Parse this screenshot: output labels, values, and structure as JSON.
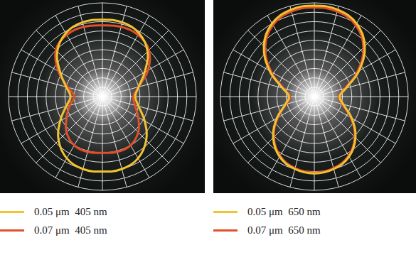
{
  "chart_data": [
    {
      "type": "radar",
      "x": [
        0,
        15,
        30,
        45,
        60,
        75,
        90,
        105,
        120,
        135,
        150,
        165,
        180,
        195,
        210,
        225,
        240,
        255,
        270,
        285,
        300,
        315,
        330,
        345
      ],
      "series": [
        {
          "name": "0.05 μm  405 nm",
          "color": "#f2c230",
          "values": [
            0.82,
            0.82,
            0.78,
            0.68,
            0.52,
            0.4,
            0.35,
            0.4,
            0.52,
            0.66,
            0.76,
            0.8,
            0.8,
            0.8,
            0.76,
            0.66,
            0.52,
            0.4,
            0.34,
            0.4,
            0.52,
            0.68,
            0.78,
            0.82
          ]
        },
        {
          "name": "0.07 μm  405 nm",
          "color": "#e0502a",
          "values": [
            0.76,
            0.77,
            0.76,
            0.7,
            0.56,
            0.4,
            0.33,
            0.36,
            0.44,
            0.54,
            0.6,
            0.61,
            0.6,
            0.61,
            0.6,
            0.54,
            0.44,
            0.36,
            0.3,
            0.38,
            0.54,
            0.7,
            0.76,
            0.77
          ]
        }
      ],
      "ylim": [
        0,
        1
      ],
      "yticks": [
        0,
        0.1,
        0.2,
        0.3,
        0.4,
        0.5,
        0.6,
        0.7,
        0.8,
        0.9,
        1
      ],
      "grid": true,
      "tick_labels": false,
      "legend": "bottom"
    },
    {
      "type": "radar",
      "x": [
        0,
        15,
        30,
        45,
        60,
        75,
        90,
        105,
        120,
        135,
        150,
        165,
        180,
        195,
        210,
        225,
        240,
        255,
        270,
        285,
        300,
        315,
        330,
        345
      ],
      "series": [
        {
          "name": "0.05 μm  650 nm",
          "color": "#f2c230",
          "values": [
            0.97,
            0.96,
            0.9,
            0.76,
            0.55,
            0.35,
            0.27,
            0.32,
            0.46,
            0.62,
            0.74,
            0.8,
            0.82,
            0.8,
            0.74,
            0.62,
            0.46,
            0.32,
            0.27,
            0.35,
            0.55,
            0.76,
            0.9,
            0.96
          ]
        },
        {
          "name": "0.07 μm  650 nm",
          "color": "#e0502a",
          "values": [
            0.95,
            0.94,
            0.88,
            0.74,
            0.53,
            0.34,
            0.26,
            0.31,
            0.45,
            0.61,
            0.73,
            0.79,
            0.81,
            0.79,
            0.73,
            0.61,
            0.45,
            0.31,
            0.26,
            0.34,
            0.53,
            0.74,
            0.88,
            0.94
          ]
        }
      ],
      "ylim": [
        0,
        1
      ],
      "yticks": [
        0,
        0.1,
        0.2,
        0.3,
        0.4,
        0.5,
        0.6,
        0.7,
        0.8,
        0.9,
        1
      ],
      "grid": true,
      "tick_labels": false,
      "legend": "bottom"
    }
  ]
}
